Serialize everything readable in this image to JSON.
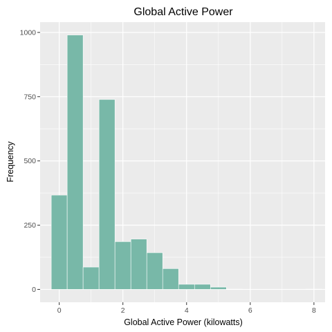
{
  "chart_data": {
    "type": "bar",
    "title": "Global Active Power",
    "xlabel": "Global Active Power (kilowatts)",
    "ylabel": "Frequency",
    "bin_width": 0.5,
    "bins": [
      {
        "x0": -0.25,
        "x1": 0.25,
        "count": 367
      },
      {
        "x0": 0.25,
        "x1": 0.75,
        "count": 990
      },
      {
        "x0": 0.75,
        "x1": 1.25,
        "count": 87
      },
      {
        "x0": 1.25,
        "x1": 1.75,
        "count": 739
      },
      {
        "x0": 1.75,
        "x1": 2.25,
        "count": 186
      },
      {
        "x0": 2.25,
        "x1": 2.75,
        "count": 196
      },
      {
        "x0": 2.75,
        "x1": 3.25,
        "count": 143
      },
      {
        "x0": 3.25,
        "x1": 3.75,
        "count": 81
      },
      {
        "x0": 3.75,
        "x1": 4.25,
        "count": 20
      },
      {
        "x0": 4.25,
        "x1": 4.75,
        "count": 20
      },
      {
        "x0": 4.75,
        "x1": 5.25,
        "count": 9
      },
      {
        "x0": 5.25,
        "x1": 5.75,
        "count": 1
      },
      {
        "x0": 5.75,
        "x1": 6.25,
        "count": 0
      },
      {
        "x0": 6.25,
        "x1": 6.75,
        "count": 0
      },
      {
        "x0": 6.75,
        "x1": 7.25,
        "count": 0
      },
      {
        "x0": 7.25,
        "x1": 7.75,
        "count": 0
      },
      {
        "x0": 7.75,
        "x1": 8.25,
        "count": 1
      }
    ],
    "xlim": [
      -0.6,
      8.35
    ],
    "ylim": [
      -50,
      1040
    ],
    "x_ticks": [
      0,
      2,
      4,
      6,
      8
    ],
    "x_tick_labels": [
      "0",
      "2",
      "4",
      "6",
      "8"
    ],
    "y_ticks": [
      0,
      250,
      500,
      750,
      1000
    ],
    "y_tick_labels": [
      "0",
      "250",
      "500",
      "750",
      "1000"
    ],
    "grid": true,
    "bar_fill": "#78b8a8",
    "bar_outline": "#ffffff",
    "panel_background": "#ebebeb",
    "grid_color": "#ffffff"
  }
}
